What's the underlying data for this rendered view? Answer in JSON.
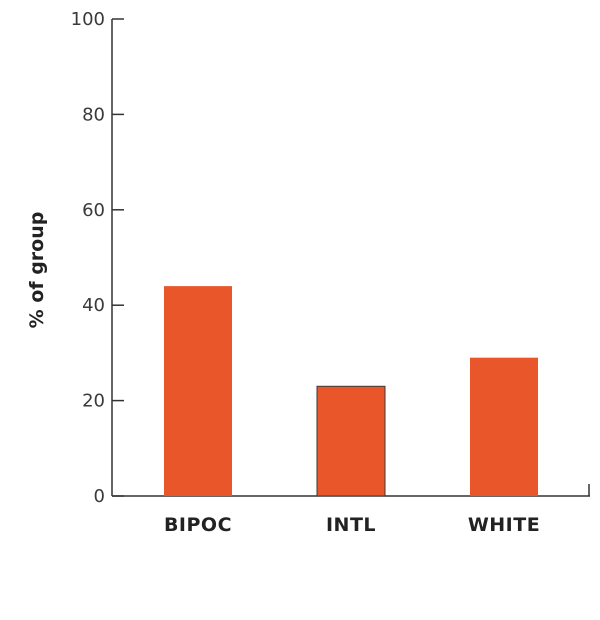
{
  "chart_data": {
    "type": "bar",
    "categories": [
      "BIPOC",
      "INTL",
      "WHITE"
    ],
    "values": [
      44,
      23,
      29
    ],
    "title": "",
    "xlabel": "",
    "ylabel": "% of group",
    "ylim": [
      0,
      100
    ],
    "yticks": [
      0,
      20,
      40,
      60,
      80,
      100
    ],
    "bar_color": "#e8562a",
    "bar_outline_color": "#3a3a3a",
    "grid": false,
    "legend": "none"
  }
}
